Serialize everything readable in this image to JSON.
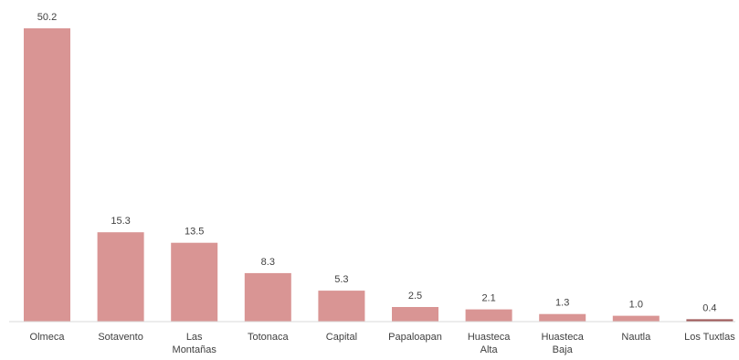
{
  "chart_data": {
    "type": "bar",
    "categories": [
      "Olmeca",
      "Sotavento",
      "Las Montañas",
      "Totonaca",
      "Capital",
      "Papaloapan",
      "Huasteca Alta",
      "Huasteca Baja",
      "Nautla",
      "Los Tuxtlas"
    ],
    "category_lines": [
      [
        "Olmeca"
      ],
      [
        "Sotavento"
      ],
      [
        "Las",
        "Montañas"
      ],
      [
        "Totonaca"
      ],
      [
        "Capital"
      ],
      [
        "Papaloapan"
      ],
      [
        "Huasteca",
        "Alta"
      ],
      [
        "Huasteca",
        "Baja"
      ],
      [
        "Nautla"
      ],
      [
        "Los Tuxtlas"
      ]
    ],
    "values": [
      50.2,
      15.3,
      13.5,
      8.3,
      5.3,
      2.5,
      2.1,
      1.3,
      1.0,
      0.4
    ],
    "value_labels": [
      "50.2",
      "15.3",
      "13.5",
      "8.3",
      "5.3",
      "2.5",
      "2.1",
      "1.3",
      "1.0",
      "0.4"
    ],
    "title": "",
    "xlabel": "",
    "ylabel": "",
    "ylim": [
      0,
      50.2
    ],
    "grid": false,
    "legend": "none",
    "colors": {
      "bar": "#d99594",
      "bar_last": "#a05a5a",
      "axis": "#d9d9d9",
      "text": "#404040"
    }
  }
}
